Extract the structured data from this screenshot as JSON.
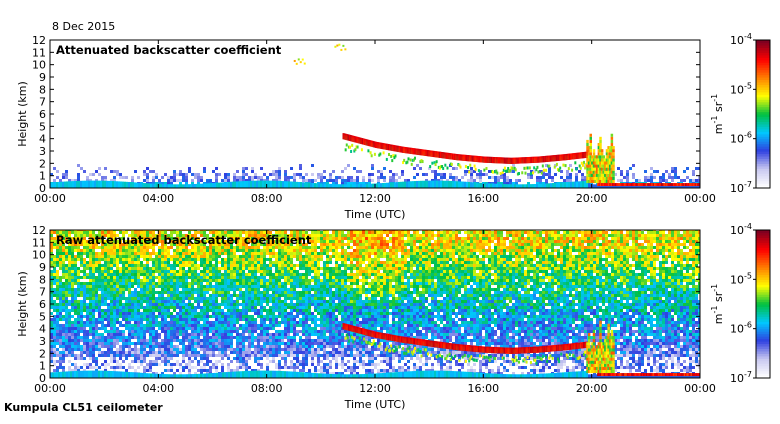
{
  "date": "8 Dec 2015",
  "instrument": "Kumpula CL51 ceilometer",
  "colors": {
    "colormap": [
      "#ffffff",
      "#c8c8f0",
      "#3040e0",
      "#00c8ff",
      "#00c040",
      "#ffff00",
      "#ff8000",
      "#ff0000",
      "#800020"
    ],
    "frame": "#000000"
  },
  "chart_data": [
    {
      "type": "heatmap",
      "title": "Attenuated backscatter coefficient",
      "xlabel": "Time (UTC)",
      "ylabel": "Height (km)",
      "xlim": [
        0,
        24
      ],
      "ylim": [
        0,
        12
      ],
      "x_ticks": [
        "00:00",
        "04:00",
        "08:00",
        "12:00",
        "16:00",
        "20:00",
        "00:00"
      ],
      "x_tick_values": [
        0,
        4,
        8,
        12,
        16,
        20,
        24
      ],
      "y_ticks": [
        "0",
        "1",
        "2",
        "3",
        "4",
        "5",
        "6",
        "7",
        "8",
        "9",
        "10",
        "11",
        "12"
      ],
      "y_tick_values": [
        0,
        1,
        2,
        3,
        4,
        5,
        6,
        7,
        8,
        9,
        10,
        11,
        12
      ],
      "colorbar": {
        "scale": "log",
        "range": [
          1e-07,
          0.0001
        ],
        "tick_bases": [
          "10",
          "10",
          "10",
          "10"
        ],
        "tick_exponents": [
          "-7",
          "-6",
          "-5",
          "-4"
        ],
        "tick_values": [
          1e-07,
          1e-06,
          1e-05,
          0.0001
        ],
        "unit_parts": [
          "m",
          "-1",
          " sr",
          "-1"
        ]
      },
      "features": {
        "noise_top_km": 1.8,
        "cloud_layer": {
          "times": [
            10.8,
            12,
            13,
            14,
            15,
            16,
            17,
            18,
            19,
            19.8
          ],
          "heights": [
            4.2,
            3.5,
            3.1,
            2.8,
            2.5,
            2.3,
            2.2,
            2.3,
            2.5,
            2.7
          ]
        },
        "precipitation_span": [
          19.8,
          20.8
        ],
        "low_cloud_after_20h": 0.3,
        "upper_features": [
          {
            "time": 9.0,
            "height": 10.3
          },
          {
            "time": 10.5,
            "height": 11.5
          }
        ]
      }
    },
    {
      "type": "heatmap",
      "title": "Raw attenuated backscatter coefficient",
      "xlabel": "Time (UTC)",
      "ylabel": "Height (km)",
      "xlim": [
        0,
        24
      ],
      "ylim": [
        0,
        12
      ],
      "x_ticks": [
        "00:00",
        "04:00",
        "08:00",
        "12:00",
        "16:00",
        "20:00",
        "00:00"
      ],
      "x_tick_values": [
        0,
        4,
        8,
        12,
        16,
        20,
        24
      ],
      "y_ticks": [
        "0",
        "1",
        "2",
        "3",
        "4",
        "5",
        "6",
        "7",
        "8",
        "9",
        "10",
        "11",
        "12"
      ],
      "y_tick_values": [
        0,
        1,
        2,
        3,
        4,
        5,
        6,
        7,
        8,
        9,
        10,
        11,
        12
      ],
      "colorbar": {
        "scale": "log",
        "range": [
          1e-07,
          0.0001
        ],
        "tick_bases": [
          "10",
          "10",
          "10",
          "10"
        ],
        "tick_exponents": [
          "-7",
          "-6",
          "-5",
          "-4"
        ],
        "tick_values": [
          1e-07,
          1e-06,
          1e-05,
          0.0001
        ],
        "unit_parts": [
          "m",
          "-1",
          " sr",
          "-1"
        ]
      },
      "features": {
        "noise_top_km": 12,
        "cloud_layer": {
          "times": [
            10.8,
            12,
            13,
            14,
            15,
            16,
            17,
            18,
            19,
            19.8
          ],
          "heights": [
            4.2,
            3.5,
            3.1,
            2.8,
            2.5,
            2.3,
            2.2,
            2.3,
            2.5,
            2.7
          ]
        },
        "precipitation_span": [
          19.8,
          20.8
        ],
        "low_cloud_after_20h": 0.3,
        "upper_features": []
      }
    }
  ]
}
